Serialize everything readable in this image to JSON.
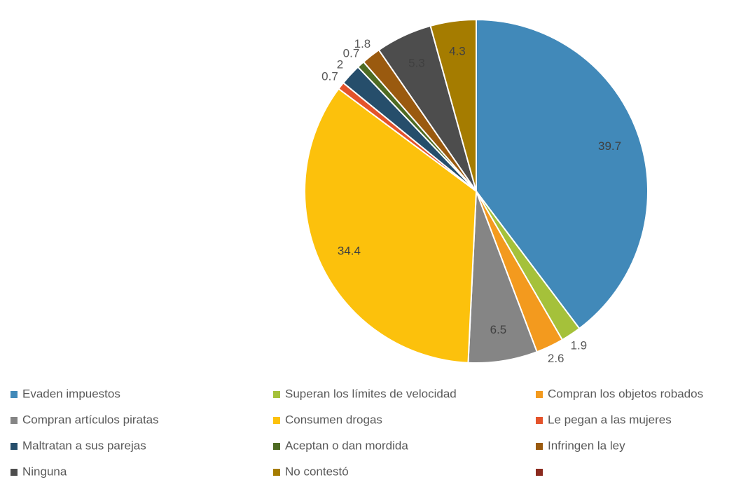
{
  "chart_data": {
    "type": "pie",
    "categories": [
      "Evaden impuestos",
      "Superan los límites de velocidad",
      "Compran los objetos robados",
      "Compran artículos piratas",
      "Consumen drogas",
      "Le pegan a las mujeres",
      "Maltratan a sus parejas",
      "Aceptan o dan mordida",
      "Infringen la ley",
      "Ninguna",
      "No contestó",
      null
    ],
    "values": [
      39.7,
      1.9,
      2.6,
      6.5,
      34.4,
      0.7,
      2,
      0.7,
      1.8,
      5.3,
      4.3,
      0
    ],
    "colors": [
      "#4189b9",
      "#a5c13a",
      "#f39a1e",
      "#858585",
      "#fcc10c",
      "#e4532b",
      "#264e6b",
      "#4e6b23",
      "#9a5a0f",
      "#4d4d4d",
      "#a57c00",
      "#8b2a1e"
    ],
    "legend": "bottom"
  }
}
